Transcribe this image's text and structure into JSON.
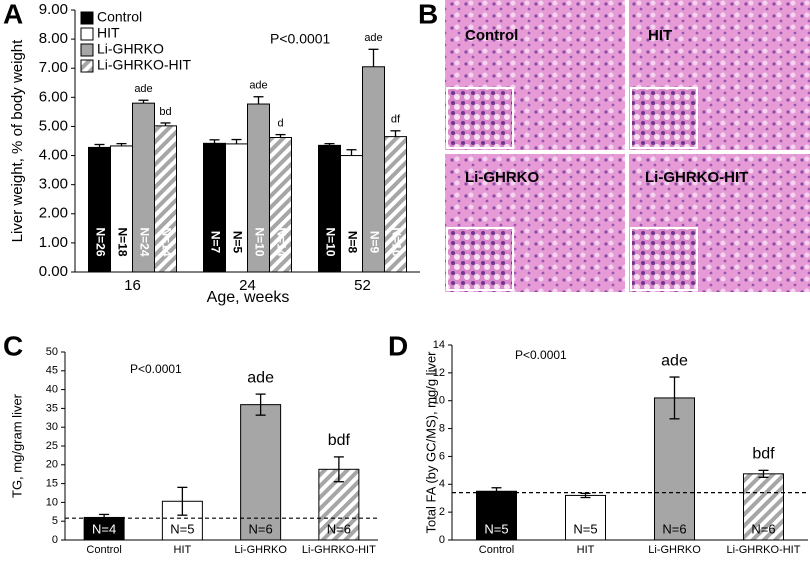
{
  "chart_data": [
    {
      "type": "bar",
      "panel": "A",
      "ylabel": "Liver weight, % of body weight",
      "xlabel": "Age, weeks",
      "p_text": "P<0.0001",
      "categories": [
        "16",
        "24",
        "52"
      ],
      "legend": "top-left",
      "ylim": [
        0,
        9
      ],
      "yticks": [
        {
          "value": 0,
          "label": "0.00"
        },
        {
          "value": 1,
          "label": "1.00"
        },
        {
          "value": 2,
          "label": "2.00"
        },
        {
          "value": 3,
          "label": "3.00"
        },
        {
          "value": 4,
          "label": "4.00"
        },
        {
          "value": 5,
          "label": "5.00"
        },
        {
          "value": 6,
          "label": "6.00"
        },
        {
          "value": 7,
          "label": "7.00"
        },
        {
          "value": 8,
          "label": "8.00"
        },
        {
          "value": 9,
          "label": "9.00"
        }
      ],
      "series": [
        {
          "name": "Control",
          "color": "#000000",
          "hatch": false,
          "values": [
            4.28,
            4.42,
            4.35
          ],
          "errors": [
            0.1,
            0.12,
            0.06
          ],
          "annotations": [
            null,
            null,
            null
          ],
          "n_labels": [
            "N=26",
            "N=7",
            "N=10"
          ]
        },
        {
          "name": "HIT",
          "color": "#ffffff",
          "hatch": false,
          "values": [
            4.33,
            4.4,
            4.0
          ],
          "errors": [
            0.08,
            0.15,
            0.2
          ],
          "annotations": [
            null,
            null,
            null
          ],
          "n_labels": [
            "N=18",
            "N=5",
            "N=8"
          ]
        },
        {
          "name": "Li-GHRKO",
          "color": "#a6a6a6",
          "hatch": false,
          "values": [
            5.8,
            5.77,
            7.05
          ],
          "errors": [
            0.1,
            0.25,
            0.6
          ],
          "annotations": [
            "ade",
            "ade",
            "ade"
          ],
          "n_labels": [
            "N=24",
            "N=10",
            "N=9"
          ]
        },
        {
          "name": "Li-GHRKO-HIT",
          "color": "#a6a6a6",
          "hatch": true,
          "values": [
            5.02,
            4.62,
            4.65
          ],
          "errors": [
            0.1,
            0.1,
            0.2
          ],
          "annotations": [
            "bd",
            "d",
            "df"
          ],
          "n_labels": [
            "N=14",
            "N=14",
            "N=10"
          ]
        }
      ]
    },
    {
      "type": "bar",
      "panel": "C",
      "ylabel": "TG, mg/gram liver",
      "p_text": "P<0.0001",
      "categories": [
        "Control",
        "HIT",
        "Li-GHRKO",
        "Li-GHRKO-HIT"
      ],
      "ylim": [
        0,
        50
      ],
      "yticks": [
        0,
        5,
        10,
        15,
        20,
        25,
        30,
        35,
        40,
        45,
        50
      ],
      "ref_line": 5.8,
      "values": [
        6,
        10.3,
        36,
        18.8
      ],
      "errors": [
        0.8,
        3.7,
        2.8,
        3.3
      ],
      "colors": [
        "#000000",
        "#ffffff",
        "#a6a6a6",
        "#a6a6a6"
      ],
      "hatched": [
        false,
        false,
        false,
        true
      ],
      "annotations": [
        null,
        null,
        "ade",
        "bdf"
      ],
      "n_labels": [
        "N=4",
        "N=5",
        "N=6",
        "N=6"
      ]
    },
    {
      "type": "bar",
      "panel": "D",
      "ylabel": "Total FA (by GC/MS), mg/g liver",
      "p_text": "P<0.0001",
      "categories": [
        "Control",
        "HIT",
        "Li-GHRKO",
        "Li-GHRKO-HIT"
      ],
      "ylim": [
        0,
        14
      ],
      "yticks": [
        0,
        2,
        4,
        6,
        8,
        10,
        12,
        14
      ],
      "ref_line": 3.4,
      "values": [
        3.5,
        3.2,
        10.2,
        4.75
      ],
      "errors": [
        0.25,
        0.15,
        1.5,
        0.25
      ],
      "colors": [
        "#000000",
        "#ffffff",
        "#a6a6a6",
        "#a6a6a6"
      ],
      "hatched": [
        false,
        false,
        false,
        true
      ],
      "annotations": [
        null,
        null,
        "ade",
        "bdf"
      ],
      "n_labels": [
        "N=5",
        "N=5",
        "N=6",
        "N=6"
      ]
    }
  ],
  "panel_b": {
    "panel": "B",
    "labels": [
      "Control",
      "HIT",
      "Li-GHRKO",
      "Li-GHRKO-HIT"
    ]
  }
}
